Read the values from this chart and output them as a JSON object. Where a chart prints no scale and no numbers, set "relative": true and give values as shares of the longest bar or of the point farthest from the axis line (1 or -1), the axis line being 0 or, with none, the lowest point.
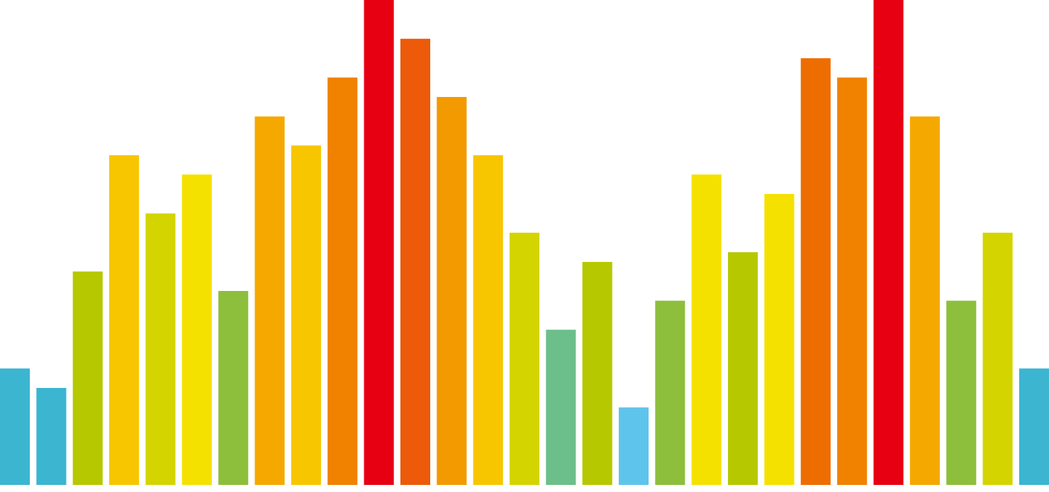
{
  "chart_data": {
    "type": "bar",
    "relative": true,
    "grid": false,
    "categories": [
      null,
      null,
      null,
      null,
      null,
      null,
      null,
      null,
      null,
      null,
      null,
      null,
      null,
      null,
      null,
      null,
      null,
      null,
      null,
      null,
      null,
      null,
      null,
      null,
      null,
      null,
      null,
      null,
      null
    ],
    "values": [
      0.24,
      0.2,
      0.44,
      0.68,
      0.56,
      0.64,
      0.4,
      0.76,
      0.7,
      0.84,
      1,
      0.92,
      0.8,
      0.68,
      0.52,
      0.32,
      0.46,
      0.16,
      0.38,
      0.64,
      0.48,
      0.6,
      0.88,
      0.84,
      1,
      0.76,
      0.38,
      0.52,
      0.24
    ],
    "colors": [
      "#3bb5d0",
      "#3bb5d0",
      "#b5c800",
      "#f7c600",
      "#d4d400",
      "#f5e100",
      "#8dbf3c",
      "#f5a800",
      "#f7c600",
      "#f08200",
      "#e60012",
      "#ec5a0a",
      "#f29a00",
      "#f7c600",
      "#d4d400",
      "#6cbf8a",
      "#b5c800",
      "#5fc4ec",
      "#8dbf3c",
      "#f5e100",
      "#b5c800",
      "#f5e100",
      "#ee6d00",
      "#f08200",
      "#e60012",
      "#f5a800",
      "#8dbf3c",
      "#d4d400",
      "#3bb5d0"
    ]
  }
}
